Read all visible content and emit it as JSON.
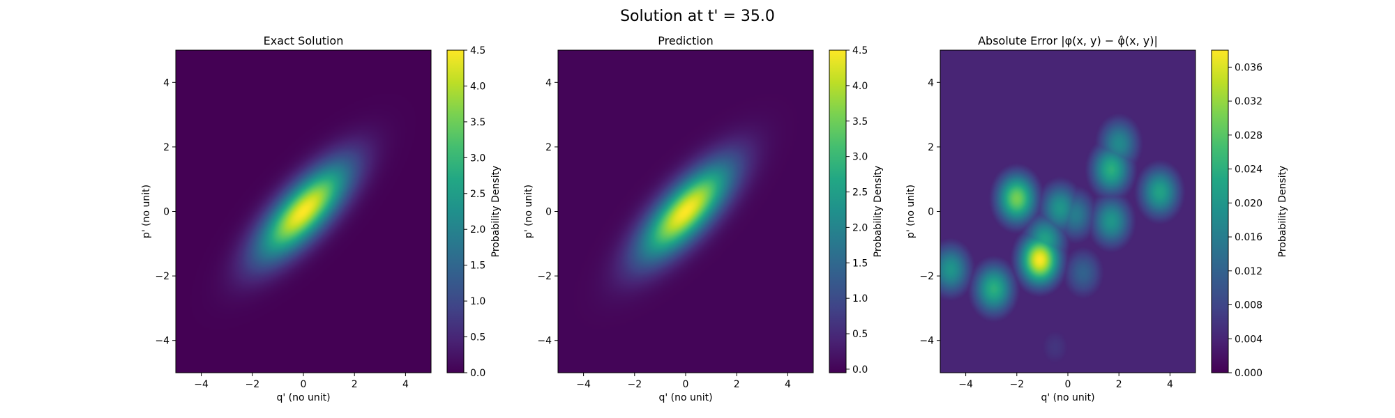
{
  "figure": {
    "title": "Solution at t' = 35.0"
  },
  "chart_data": [
    {
      "type": "heatmap",
      "title": "Exact Solution",
      "xlabel": "q' (no unit)",
      "ylabel": "p' (no unit)",
      "xlim": [
        -5,
        5
      ],
      "ylim": [
        -5,
        5
      ],
      "x_ticks": [
        "−4",
        "−2",
        "0",
        "2",
        "4"
      ],
      "y_ticks": [
        "−4",
        "−2",
        "0",
        "2",
        "4"
      ],
      "colormap": "viridis",
      "colorbar": {
        "label": "Probability Density",
        "range": [
          0,
          4.5
        ],
        "ticks": [
          "0.0",
          "0.5",
          "1.0",
          "1.5",
          "2.0",
          "2.5",
          "3.0",
          "3.5",
          "4.0",
          "4.5"
        ]
      },
      "field": {
        "shape": "tilted gaussian ellipse",
        "center": [
          0,
          0
        ],
        "peak": 4.5,
        "major_axis_angle_deg": 38,
        "sigma_major": 1.5,
        "sigma_minor": 0.55
      }
    },
    {
      "type": "heatmap",
      "title": "Prediction",
      "xlabel": "q' (no unit)",
      "ylabel": "p' (no unit)",
      "xlim": [
        -5,
        5
      ],
      "ylim": [
        -5,
        5
      ],
      "x_ticks": [
        "−4",
        "−2",
        "0",
        "2",
        "4"
      ],
      "y_ticks": [
        "−4",
        "−2",
        "0",
        "2",
        "4"
      ],
      "colormap": "viridis",
      "colorbar": {
        "label": "Probability Density",
        "range": [
          -0.05,
          4.5
        ],
        "ticks": [
          "0.0",
          "0.5",
          "1.0",
          "1.5",
          "2.0",
          "2.5",
          "3.0",
          "3.5",
          "4.0",
          "4.5"
        ]
      },
      "field": {
        "shape": "tilted gaussian ellipse",
        "center": [
          0,
          0
        ],
        "peak": 4.5,
        "major_axis_angle_deg": 38,
        "sigma_major": 1.5,
        "sigma_minor": 0.55
      }
    },
    {
      "type": "heatmap",
      "title": "Absolute Error |φ(x, y) − φ̂(x, y)|",
      "xlabel": "q' (no unit)",
      "ylabel": "p' (no unit)",
      "xlim": [
        -5,
        5
      ],
      "ylim": [
        -5,
        5
      ],
      "x_ticks": [
        "−4",
        "−2",
        "0",
        "2",
        "4"
      ],
      "y_ticks": [
        "−4",
        "−2",
        "0",
        "2",
        "4"
      ],
      "colormap": "viridis",
      "colorbar": {
        "label": "Probability Density",
        "range": [
          0,
          0.038
        ],
        "ticks": [
          "0.000",
          "0.004",
          "0.008",
          "0.012",
          "0.016",
          "0.020",
          "0.024",
          "0.028",
          "0.032",
          "0.036"
        ]
      },
      "field": {
        "shape": "interference lobes",
        "background": 0.004,
        "blobs": [
          {
            "center": [
              -1.1,
              -1.5
            ],
            "value": 0.038
          },
          {
            "center": [
              -2.0,
              0.4
            ],
            "value": 0.03
          },
          {
            "center": [
              -0.9,
              -0.9
            ],
            "value": 0.022
          },
          {
            "center": [
              -0.3,
              0.1
            ],
            "value": 0.02
          },
          {
            "center": [
              0.3,
              -0.1
            ],
            "value": 0.016
          },
          {
            "center": [
              1.7,
              1.3
            ],
            "value": 0.024
          },
          {
            "center": [
              2.0,
              2.1
            ],
            "value": 0.018
          },
          {
            "center": [
              3.6,
              0.6
            ],
            "value": 0.022
          },
          {
            "center": [
              1.7,
              -0.3
            ],
            "value": 0.02
          },
          {
            "center": [
              -2.9,
              -2.4
            ],
            "value": 0.024
          },
          {
            "center": [
              -4.6,
              -1.8
            ],
            "value": 0.02
          },
          {
            "center": [
              0.6,
              -1.9
            ],
            "value": 0.012
          },
          {
            "center": [
              -0.5,
              -4.2
            ],
            "value": 0.006
          }
        ]
      }
    }
  ]
}
